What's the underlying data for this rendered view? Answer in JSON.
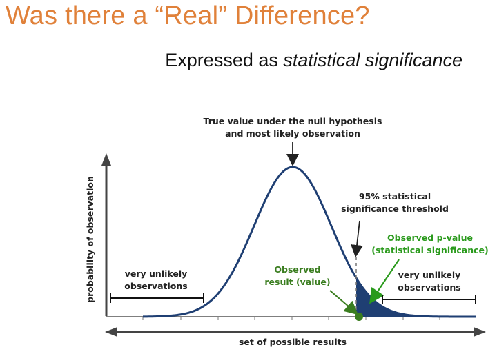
{
  "slide": {
    "title": "Was there a “Real” Difference?",
    "subtitle_plain": "Expressed as ",
    "subtitle_italic": "statistical significance"
  },
  "diagram": {
    "null_label_line1": "True value under the null hypothesis",
    "null_label_line2": "and most likely observation",
    "threshold_line1": "95% statistical",
    "threshold_line2": "significance threshold",
    "pvalue_line1": "Observed p-value",
    "pvalue_line2": "(statistical significance)",
    "observed_line1": "Observed",
    "observed_line2": "result (value)",
    "left_tail_line1": "very unlikely",
    "left_tail_line2": "observations",
    "right_tail_line1": "very unlikely",
    "right_tail_line2": "observations",
    "y_axis_label": "probability of observation",
    "x_axis_label": "set of possible results"
  },
  "colors": {
    "title": "#e0813a",
    "curve": "#1f3f73",
    "green": "#3a7d1f",
    "pvalue_green": "#2a9a1c",
    "axis": "#444444"
  }
}
